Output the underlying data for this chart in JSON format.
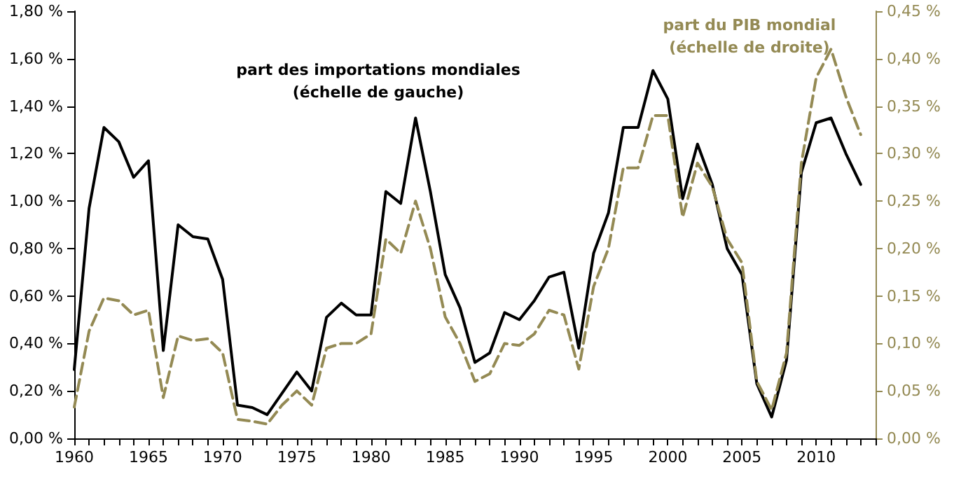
{
  "chart_data": {
    "type": "line",
    "x": [
      1960,
      1961,
      1962,
      1963,
      1964,
      1965,
      1966,
      1967,
      1968,
      1969,
      1970,
      1971,
      1972,
      1973,
      1974,
      1975,
      1976,
      1977,
      1978,
      1979,
      1980,
      1981,
      1982,
      1983,
      1984,
      1985,
      1986,
      1987,
      1988,
      1989,
      1990,
      1991,
      1992,
      1993,
      1994,
      1995,
      1996,
      1997,
      1998,
      1999,
      2000,
      2001,
      2002,
      2003,
      2004,
      2005,
      2006,
      2007,
      2008,
      2009,
      2010,
      2011,
      2012,
      2013
    ],
    "series": [
      {
        "name": "part des importations mondiales\n(échelle de gauche)",
        "color": "#000000",
        "line_style": "solid",
        "values": [
          0.29,
          0.97,
          1.31,
          1.25,
          1.1,
          1.17,
          0.37,
          0.9,
          0.85,
          0.84,
          0.67,
          0.14,
          0.13,
          0.1,
          0.19,
          0.28,
          0.2,
          0.51,
          0.57,
          0.52,
          0.52,
          1.04,
          0.99,
          1.35,
          1.04,
          0.69,
          0.55,
          0.32,
          0.36,
          0.53,
          0.5,
          0.58,
          0.68,
          0.7,
          0.38,
          0.78,
          0.95,
          1.31,
          1.31,
          1.55,
          1.43,
          1.01,
          1.24,
          1.07,
          0.8,
          0.69,
          0.23,
          0.09,
          0.33,
          1.12,
          1.33,
          1.35,
          1.2,
          1.07
        ]
      },
      {
        "name": "part du PIB mondial\n(échelle de droite)",
        "color": "#948a54",
        "line_style": "dashed",
        "axis": "y2",
        "values": [
          0.033,
          0.113,
          0.148,
          0.145,
          0.13,
          0.135,
          0.043,
          0.108,
          0.103,
          0.105,
          0.09,
          0.02,
          0.018,
          0.015,
          0.035,
          0.05,
          0.035,
          0.095,
          0.1,
          0.1,
          0.11,
          0.21,
          0.195,
          0.25,
          0.2,
          0.128,
          0.1,
          0.06,
          0.068,
          0.1,
          0.098,
          0.11,
          0.135,
          0.13,
          0.073,
          0.16,
          0.2,
          0.285,
          0.285,
          0.34,
          0.34,
          0.233,
          0.29,
          0.265,
          0.21,
          0.185,
          0.06,
          0.03,
          0.09,
          0.29,
          0.38,
          0.41,
          0.36,
          0.32
        ]
      }
    ],
    "xlim": [
      1960,
      2014
    ],
    "xticks": [
      1960,
      {
        "value": 1961,
        "label": null
      },
      {
        "value": 1962,
        "label": null
      },
      {
        "value": 1963,
        "label": null
      },
      {
        "value": 1964,
        "label": null
      },
      1965,
      {
        "value": 1966,
        "label": null
      },
      {
        "value": 1967,
        "label": null
      },
      {
        "value": 1968,
        "label": null
      },
      {
        "value": 1969,
        "label": null
      },
      1970,
      {
        "value": 1971,
        "label": null
      },
      {
        "value": 1972,
        "label": null
      },
      {
        "value": 1973,
        "label": null
      },
      {
        "value": 1974,
        "label": null
      },
      1975,
      {
        "value": 1976,
        "label": null
      },
      {
        "value": 1977,
        "label": null
      },
      {
        "value": 1978,
        "label": null
      },
      {
        "value": 1979,
        "label": null
      },
      1980,
      {
        "value": 1981,
        "label": null
      },
      {
        "value": 1982,
        "label": null
      },
      {
        "value": 1983,
        "label": null
      },
      {
        "value": 1984,
        "label": null
      },
      1985,
      {
        "value": 1986,
        "label": null
      },
      {
        "value": 1987,
        "label": null
      },
      {
        "value": 1988,
        "label": null
      },
      {
        "value": 1989,
        "label": null
      },
      1990,
      {
        "value": 1991,
        "label": null
      },
      {
        "value": 1992,
        "label": null
      },
      {
        "value": 1993,
        "label": null
      },
      {
        "value": 1994,
        "label": null
      },
      1995,
      {
        "value": 1996,
        "label": null
      },
      {
        "value": 1997,
        "label": null
      },
      {
        "value": 1998,
        "label": null
      },
      {
        "value": 1999,
        "label": null
      },
      2000,
      {
        "value": 2001,
        "label": null
      },
      {
        "value": 2002,
        "label": null
      },
      {
        "value": 2003,
        "label": null
      },
      {
        "value": 2004,
        "label": null
      },
      2005,
      {
        "value": 2006,
        "label": null
      },
      {
        "value": 2007,
        "label": null
      },
      {
        "value": 2008,
        "label": null
      },
      {
        "value": 2009,
        "label": null
      },
      2010,
      {
        "value": 2011,
        "label": null
      },
      {
        "value": 2012,
        "label": null
      },
      {
        "value": 2013,
        "label": null
      },
      {
        "value": 2014,
        "label": null
      }
    ],
    "ylim": [
      0,
      1.8
    ],
    "yticks": [
      {
        "value": 0,
        "label": "0,00 %"
      },
      {
        "value": 0.2,
        "label": "0,20 %"
      },
      {
        "value": 0.4,
        "label": "0,40 %"
      },
      {
        "value": 0.6,
        "label": "0,60 %"
      },
      {
        "value": 0.8,
        "label": "0,80 %"
      },
      {
        "value": 1.0,
        "label": "1,00 %"
      },
      {
        "value": 1.2,
        "label": "1,20 %"
      },
      {
        "value": 1.4,
        "label": "1,40 %"
      },
      {
        "value": 1.6,
        "label": "1,60 %"
      },
      {
        "value": 1.8,
        "label": "1,80 %"
      }
    ],
    "y2lim": [
      0,
      0.45
    ],
    "y2ticks": [
      {
        "value": 0,
        "label": "0,00 %"
      },
      {
        "value": 0.05,
        "label": "0,05 %"
      },
      {
        "value": 0.1,
        "label": "0,10 %"
      },
      {
        "value": 0.15,
        "label": "0,15 %"
      },
      {
        "value": 0.2,
        "label": "0,20 %"
      },
      {
        "value": 0.25,
        "label": "0,25 %"
      },
      {
        "value": 0.3,
        "label": "0,30 %"
      },
      {
        "value": 0.35,
        "label": "0,35 %"
      },
      {
        "value": 0.4,
        "label": "0,40 %"
      },
      {
        "value": 0.45,
        "label": "0,45 %"
      }
    ],
    "grid": false,
    "marker": "none"
  }
}
